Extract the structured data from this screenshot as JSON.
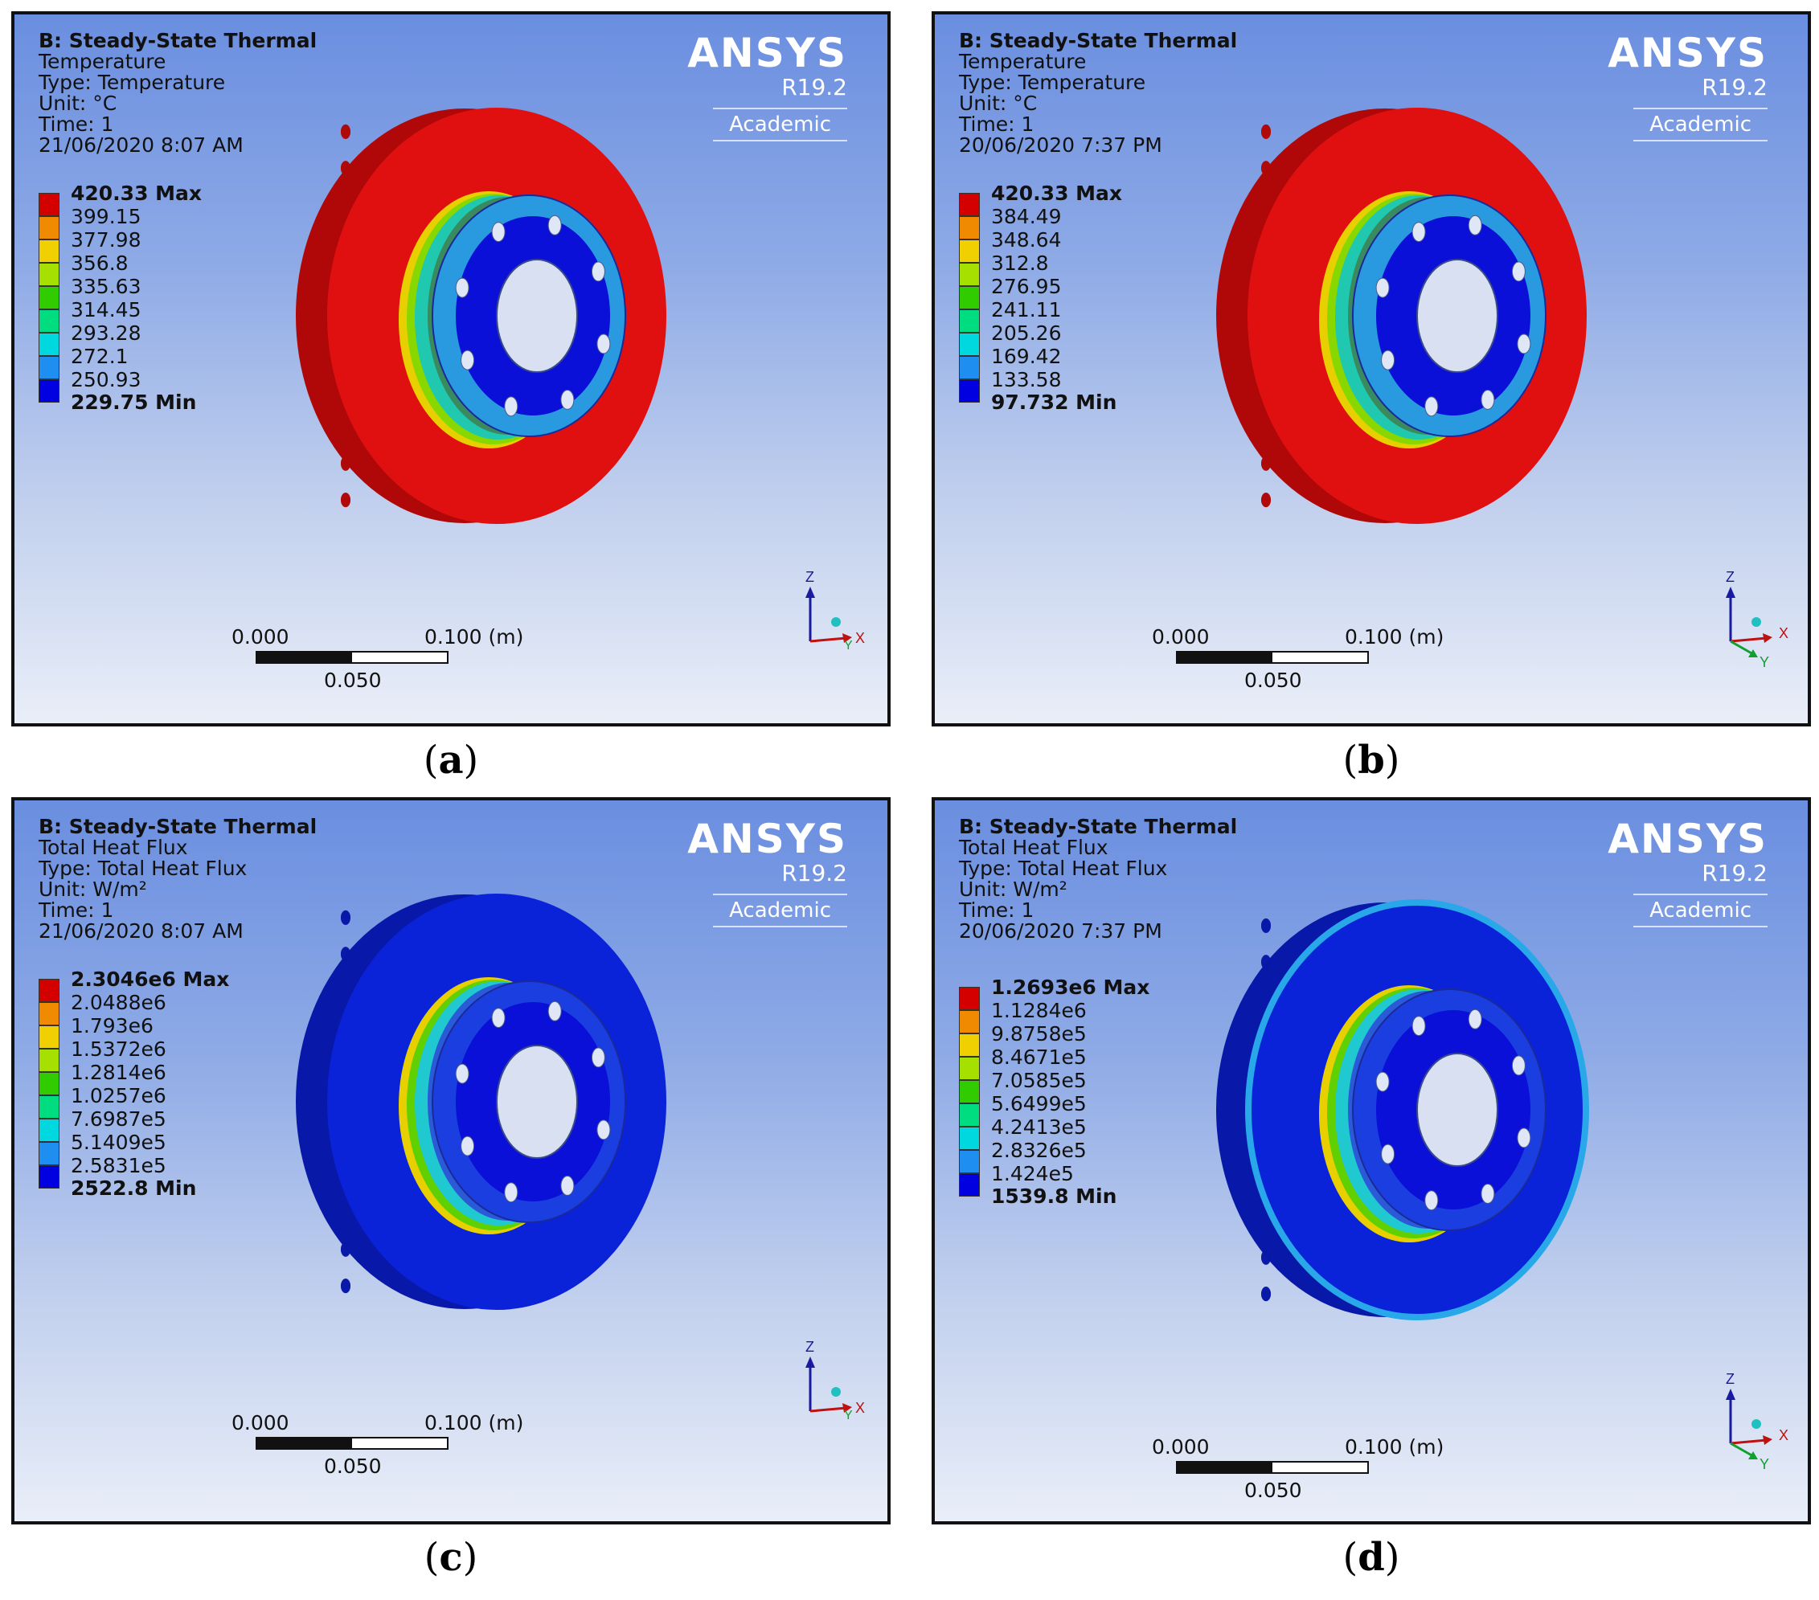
{
  "colors": {
    "legend": [
      "#d40000",
      "#f08a00",
      "#f0d000",
      "#a6e000",
      "#30cc00",
      "#00dc80",
      "#00d8e0",
      "#1e8ff0",
      "#0000e0"
    ],
    "temp_outer": "#e01010",
    "flux_body": "#0a22d8"
  },
  "panels": [
    {
      "title": "B: Steady-State Thermal",
      "result": "Temperature",
      "type": "Type: Temperature",
      "unit": "Unit: °C",
      "time": "Time: 1",
      "date": "21/06/2020 8:07 AM",
      "legend_max": "420.33 Max",
      "legend_values": [
        "399.15",
        "377.98",
        "356.8",
        "335.63",
        "314.45",
        "293.28",
        "272.1",
        "250.93"
      ],
      "legend_min": "229.75 Min",
      "brand": "ANSYS",
      "version": "R19.2",
      "edition": "Academic",
      "scale": {
        "start": "0.000",
        "end": "0.100 (m)",
        "mid": "0.050"
      },
      "axes": {
        "z": "Z",
        "x": "X",
        "y": "Y"
      },
      "caption": "a",
      "variant": "temp-a"
    },
    {
      "title": "B: Steady-State Thermal",
      "result": "Temperature",
      "type": "Type: Temperature",
      "unit": "Unit: °C",
      "time": "Time: 1",
      "date": "20/06/2020 7:37 PM",
      "legend_max": "420.33 Max",
      "legend_values": [
        "384.49",
        "348.64",
        "312.8",
        "276.95",
        "241.11",
        "205.26",
        "169.42",
        "133.58"
      ],
      "legend_min": "97.732 Min",
      "brand": "ANSYS",
      "version": "R19.2",
      "edition": "Academic",
      "scale": {
        "start": "0.000",
        "end": "0.100 (m)",
        "mid": "0.050"
      },
      "axes": {
        "z": "Z",
        "x": "X",
        "y": "Y"
      },
      "caption": "b",
      "variant": "temp-b"
    },
    {
      "title": "B: Steady-State Thermal",
      "result": "Total Heat Flux",
      "type": "Type: Total Heat Flux",
      "unit": "Unit: W/m²",
      "time": "Time: 1",
      "date": "21/06/2020 8:07 AM",
      "legend_max": "2.3046e6 Max",
      "legend_values": [
        "2.0488e6",
        "1.793e6",
        "1.5372e6",
        "1.2814e6",
        "1.0257e6",
        "7.6987e5",
        "5.1409e5",
        "2.5831e5"
      ],
      "legend_min": "2522.8 Min",
      "brand": "ANSYS",
      "version": "R19.2",
      "edition": "Academic",
      "scale": {
        "start": "0.000",
        "end": "0.100 (m)",
        "mid": "0.050"
      },
      "axes": {
        "z": "Z",
        "x": "X",
        "y": "Y"
      },
      "caption": "c",
      "variant": "flux-c"
    },
    {
      "title": "B: Steady-State Thermal",
      "result": "Total Heat Flux",
      "type": "Type: Total Heat Flux",
      "unit": "Unit: W/m²",
      "time": "Time: 1",
      "date": "20/06/2020 7:37 PM",
      "legend_max": "1.2693e6 Max",
      "legend_values": [
        "1.1284e6",
        "9.8758e5",
        "8.4671e5",
        "7.0585e5",
        "5.6499e5",
        "4.2413e5",
        "2.8326e5",
        "1.424e5"
      ],
      "legend_min": "1539.8 Min",
      "brand": "ANSYS",
      "version": "R19.2",
      "edition": "Academic",
      "scale": {
        "start": "0.000",
        "end": "0.100 (m)",
        "mid": "0.050"
      },
      "axes": {
        "z": "Z",
        "x": "X",
        "y": "Y"
      },
      "caption": "d",
      "variant": "flux-d"
    }
  ]
}
